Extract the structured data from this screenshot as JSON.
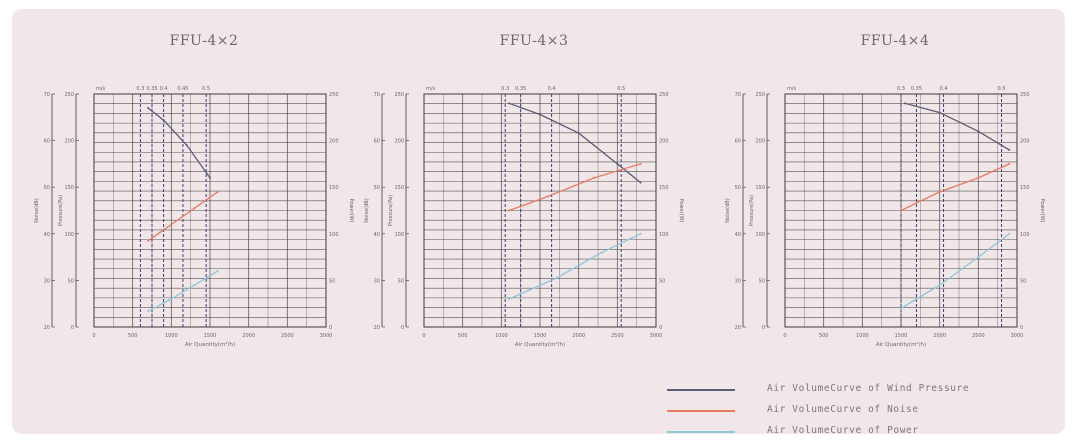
{
  "colors": {
    "pressure": "#5a5e78",
    "noise": "#e87a62",
    "power": "#8ec7d9",
    "grid": "#3b3b3b",
    "text": "#6d6668"
  },
  "chart_data": [
    {
      "type": "line",
      "title": "FFU-4×2",
      "xlabel": "Air Quantity(m³/h)",
      "noise_label": "Noise(dB)",
      "pressure_label": "Pressure(Pa)",
      "power_label": "Power(W)",
      "xlim": [
        0,
        3000
      ],
      "x_ticks": [
        "0",
        "500",
        "1000",
        "1500",
        "2000",
        "2500",
        "3000"
      ],
      "noise_ticks": [
        "20",
        "30",
        "40",
        "50",
        "60",
        "70"
      ],
      "pressure_ticks": [
        "0",
        "50",
        "100",
        "150",
        "200",
        "250"
      ],
      "power_ticks": [
        "0",
        "50",
        "100",
        "150",
        "200",
        "250"
      ],
      "speed_labels": [
        {
          "x": 0,
          "label": "m/s"
        },
        {
          "x": 600,
          "label": "0.3"
        },
        {
          "x": 750,
          "label": "0.35"
        },
        {
          "x": 900,
          "label": "0.4"
        },
        {
          "x": 1150,
          "label": "0.45"
        },
        {
          "x": 1450,
          "label": "0.5"
        }
      ],
      "series": [
        {
          "key": "pressure",
          "x": [
            700,
            900,
            1200,
            1500
          ],
          "y": [
            235,
            222,
            195,
            160
          ]
        },
        {
          "key": "noise",
          "x": [
            700,
            1000,
            1300,
            1600
          ],
          "y": [
            38.5,
            42,
            45.5,
            49
          ]
        },
        {
          "key": "power",
          "x": [
            700,
            1000,
            1300,
            1600
          ],
          "y": [
            17,
            30,
            45,
            60
          ]
        }
      ]
    },
    {
      "type": "line",
      "title": "FFU-4×3",
      "xlabel": "Air Quantity(m³/h)",
      "noise_label": "Noise(dB)",
      "pressure_label": "Pressure(Pa)",
      "power_label": "Power(W)",
      "xlim": [
        0,
        3000
      ],
      "x_ticks": [
        "0",
        "500",
        "1000",
        "1500",
        "2000",
        "2500",
        "3000"
      ],
      "noise_ticks": [
        "20",
        "30",
        "40",
        "50",
        "60",
        "70"
      ],
      "pressure_ticks": [
        "0",
        "50",
        "100",
        "150",
        "200",
        "250"
      ],
      "power_ticks": [
        "0",
        "50",
        "100",
        "150",
        "200",
        "250"
      ],
      "speed_labels": [
        {
          "x": 0,
          "label": "m/s"
        },
        {
          "x": 1050,
          "label": "0.3"
        },
        {
          "x": 1250,
          "label": "0.35"
        },
        {
          "x": 1650,
          "label": "0.4"
        },
        {
          "x": 2550,
          "label": "0.5"
        }
      ],
      "series": [
        {
          "key": "pressure",
          "x": [
            1100,
            1500,
            2000,
            2500,
            2800
          ],
          "y": [
            240,
            228,
            208,
            175,
            155
          ]
        },
        {
          "key": "noise",
          "x": [
            1100,
            1600,
            2200,
            2800
          ],
          "y": [
            45,
            48,
            52,
            55
          ]
        },
        {
          "key": "power",
          "x": [
            1100,
            1700,
            2300,
            2800
          ],
          "y": [
            30,
            52,
            80,
            100
          ]
        }
      ]
    },
    {
      "type": "line",
      "title": "FFU-4×4",
      "xlabel": "Air Quantity(m³/h)",
      "noise_label": "Noise(dB)",
      "pressure_label": "Pressure(Pa)",
      "power_label": "Power(W)",
      "xlim": [
        0,
        3000
      ],
      "x_ticks": [
        "0",
        "500",
        "1000",
        "1500",
        "2000",
        "2500",
        "3000"
      ],
      "noise_ticks": [
        "20",
        "30",
        "40",
        "50",
        "60",
        "70"
      ],
      "pressure_ticks": [
        "0",
        "50",
        "100",
        "150",
        "200",
        "250"
      ],
      "power_ticks": [
        "0",
        "50",
        "100",
        "150",
        "200",
        "250"
      ],
      "speed_labels": [
        {
          "x": 0,
          "label": "m/s"
        },
        {
          "x": 1500,
          "label": "0.3"
        },
        {
          "x": 1700,
          "label": "0.35"
        },
        {
          "x": 2050,
          "label": "0.4"
        },
        {
          "x": 2800,
          "label": "0.5"
        }
      ],
      "series": [
        {
          "key": "pressure",
          "x": [
            1550,
            2000,
            2500,
            2900
          ],
          "y": [
            240,
            230,
            210,
            190
          ]
        },
        {
          "key": "noise",
          "x": [
            1500,
            2000,
            2500,
            2900
          ],
          "y": [
            45,
            49,
            52,
            55
          ]
        },
        {
          "key": "power",
          "x": [
            1500,
            2000,
            2500,
            2900
          ],
          "y": [
            20,
            45,
            75,
            100
          ]
        }
      ]
    }
  ],
  "legend": [
    {
      "key": "pressure",
      "label": "Air VolumeCurve of Wind Pressure"
    },
    {
      "key": "noise",
      "label": "Air VolumeCurve of Noise"
    },
    {
      "key": "power",
      "label": "Air VolumeCurve of Power"
    }
  ]
}
